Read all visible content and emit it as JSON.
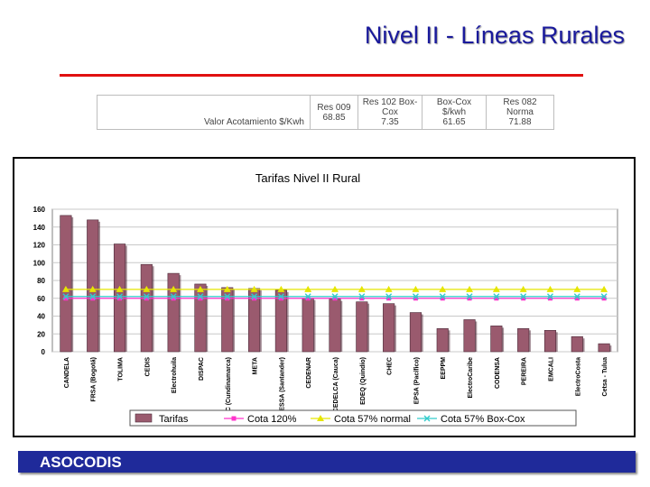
{
  "page": {
    "title": "Nivel II - Líneas Rurales",
    "footer": "ASOCODIS"
  },
  "reference_table": {
    "row_label": "Valor Acotamiento $/Kwh",
    "columns": [
      {
        "header": "Res 009",
        "value": "68.85"
      },
      {
        "header": "Res 102 Box-Cox",
        "value": "7.35"
      },
      {
        "header": "Box-Cox $/kwh",
        "value": "61.65"
      },
      {
        "header": "Res 082 Norma",
        "value": "71.88"
      }
    ]
  },
  "chart_data": {
    "type": "bar",
    "title": "Tarifas Nivel II Rural",
    "ylim": [
      0,
      160
    ],
    "yticks": [
      0,
      20,
      40,
      60,
      80,
      100,
      120,
      140,
      160
    ],
    "grid": true,
    "legend_position": "bottom",
    "categories": [
      "CANDELA",
      "FRSA (Bogotá)",
      "TOLIMA",
      "CEDIS",
      "Electrohuila",
      "DISPAC",
      "EEC (Cundinamarca)",
      "META",
      "ESSA (Santander)",
      "CEDENAR",
      "CEDELCA (Cauca)",
      "EDEQ (Quindío)",
      "CHEC",
      "EPSA (Pacífico)",
      "EEPPM",
      "ElectroCaribe",
      "CODENSA",
      "PEREIRA",
      "EMCALI",
      "ElectroCosta",
      "Cetsa - Tulua"
    ],
    "series": [
      {
        "name": "Tarifas",
        "kind": "bar",
        "color": "#9a5a6e",
        "values": [
          153,
          148,
          121,
          98,
          88,
          76,
          72,
          71,
          69,
          60,
          59,
          56,
          54,
          44,
          26,
          36,
          29,
          26,
          24,
          17,
          9
        ]
      },
      {
        "name": "Cota 120%",
        "kind": "line",
        "color": "#ff33cc",
        "marker": "square",
        "values": [
          60,
          60,
          60,
          60,
          60,
          60,
          60,
          60,
          60,
          60,
          60,
          60,
          60,
          60,
          60,
          60,
          60,
          60,
          60,
          60,
          60
        ]
      },
      {
        "name": "Cota 57% normal",
        "kind": "line",
        "color": "#e6e600",
        "marker": "triangle",
        "values": [
          70,
          70,
          70,
          70,
          70,
          70,
          70,
          70,
          70,
          70,
          70,
          70,
          70,
          70,
          70,
          70,
          70,
          70,
          70,
          70,
          70
        ]
      },
      {
        "name": "Cota 57% Box-Cox",
        "kind": "line",
        "color": "#33cccc",
        "marker": "x",
        "values": [
          62,
          62,
          62,
          62,
          62,
          62,
          62,
          62,
          62,
          62,
          62,
          62,
          62,
          62,
          62,
          62,
          62,
          62,
          62,
          62,
          62
        ]
      }
    ]
  }
}
